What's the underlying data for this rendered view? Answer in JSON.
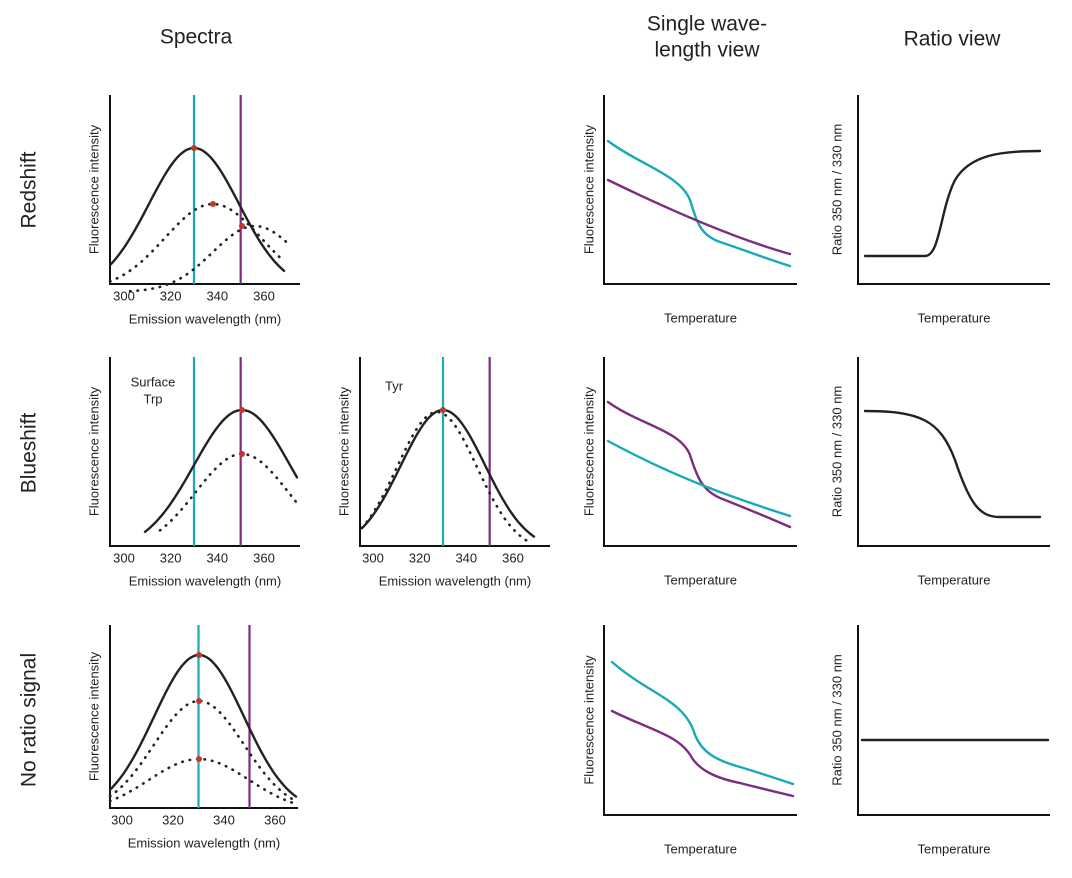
{
  "column_titles": {
    "spectra": "Spectra",
    "single": [
      "Single wave-",
      "length view"
    ],
    "ratio": "Ratio view"
  },
  "row_labels": [
    "Redshift",
    "Blueshift",
    "No ratio signal"
  ],
  "axis_labels": {
    "fluorescence": "Fluorescence intensity",
    "wavelength": "Emission wavelength (nm)",
    "temperature": "Temperature",
    "ratio": "Ratio 350 nm / 330 nm"
  },
  "wavelength_ticks": [
    300,
    320,
    340,
    360
  ],
  "annotations": {
    "surface_trp": [
      "Surface",
      "Trp"
    ],
    "tyr": "Tyr"
  }
}
